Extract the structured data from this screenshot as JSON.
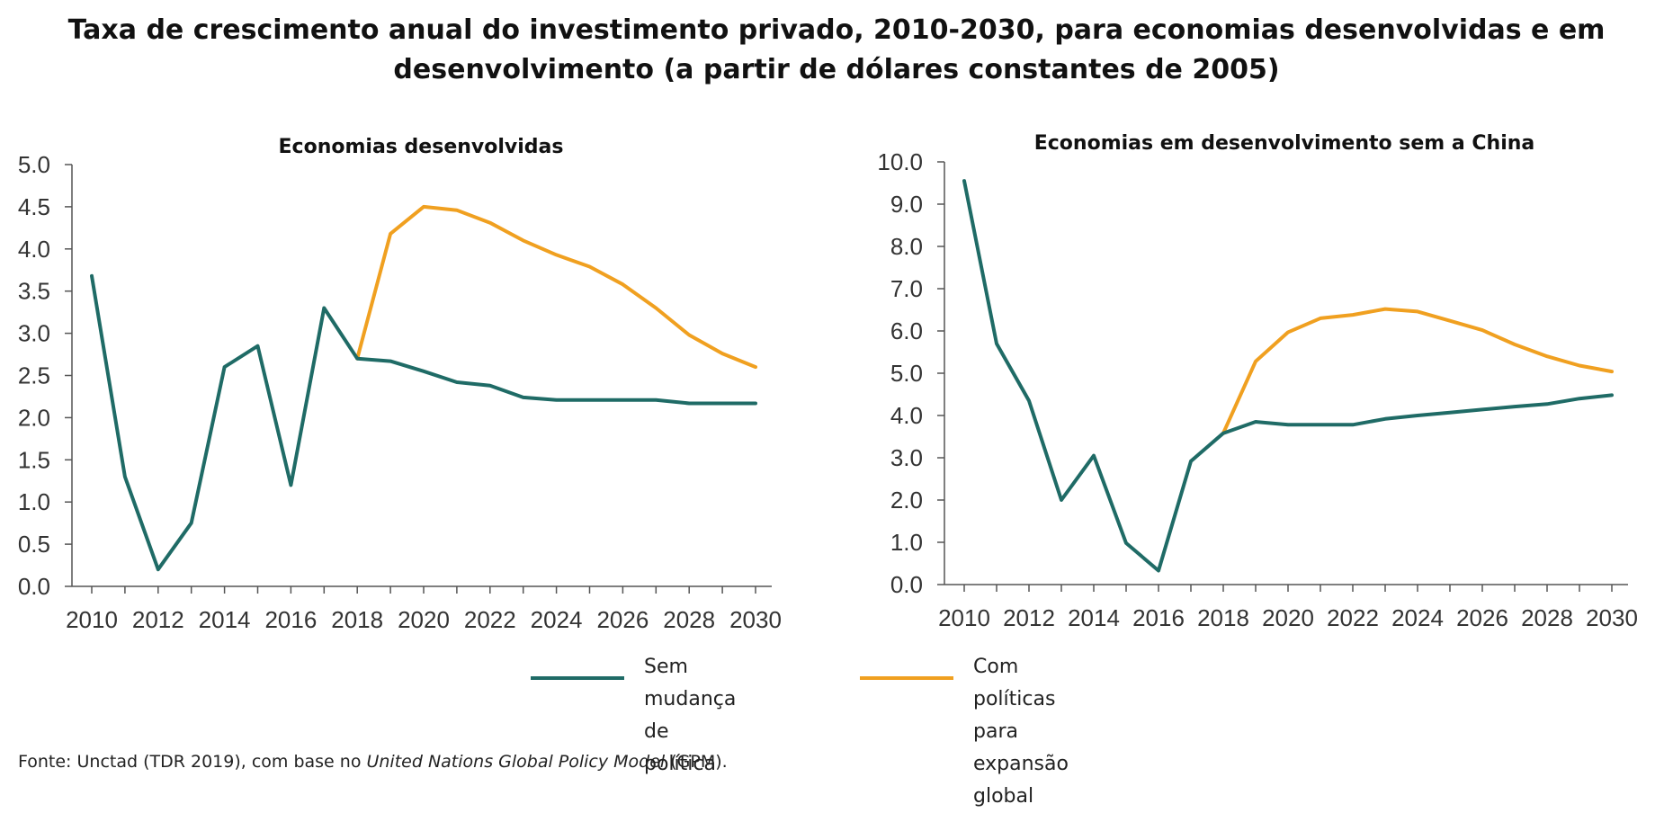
{
  "title_line1": "Taxa de crescimento anual do investimento privado, 2010-2030, para economias desenvolvidas e em",
  "title_line2": "desenvolvimento (a partir de dólares constantes de 2005)",
  "legend": [
    {
      "label_line1": "Sem mudança de",
      "label_line2": "política",
      "color": "#1f6b66"
    },
    {
      "label_line1": "Com políticas para",
      "label_line2": "expansão global",
      "color": "#f0a020"
    }
  ],
  "source": {
    "prefix": "Fonte: Unctad (TDR 2019), com base no ",
    "italic": "United Nations Global Policy Model",
    "suffix": " (GPM)."
  },
  "chart_data": [
    {
      "type": "line",
      "title": "Economias desenvolvidas",
      "x": [
        2010,
        2011,
        2012,
        2013,
        2014,
        2015,
        2016,
        2017,
        2018,
        2019,
        2020,
        2021,
        2022,
        2023,
        2024,
        2025,
        2026,
        2027,
        2028,
        2029,
        2030
      ],
      "xticks": [
        "2010",
        "2012",
        "2014",
        "2016",
        "2018",
        "2020",
        "2022",
        "2024",
        "2026",
        "2028",
        "2030"
      ],
      "yticks": [
        "0.0",
        "0.5",
        "1.0",
        "1.5",
        "2.0",
        "2.5",
        "3.0",
        "3.5",
        "4.0",
        "4.5",
        "5.0"
      ],
      "ylim": [
        0,
        5
      ],
      "grid": false,
      "series": [
        {
          "name": "Sem mudança de política",
          "color": "#1f6b66",
          "x": [
            2010,
            2011,
            2012,
            2013,
            2014,
            2015,
            2016,
            2017,
            2018,
            2019,
            2020,
            2021,
            2022,
            2023,
            2024,
            2025,
            2026,
            2027,
            2028,
            2029,
            2030
          ],
          "values": [
            3.68,
            1.3,
            0.2,
            0.75,
            2.6,
            2.85,
            1.2,
            3.3,
            2.7,
            2.67,
            2.55,
            2.42,
            2.38,
            2.24,
            2.21,
            2.21,
            2.21,
            2.21,
            2.17,
            2.17,
            2.17
          ]
        },
        {
          "name": "Com políticas para expansão global",
          "color": "#f0a020",
          "x": [
            2018,
            2019,
            2020,
            2021,
            2022,
            2023,
            2024,
            2025,
            2026,
            2027,
            2028,
            2029,
            2030
          ],
          "values": [
            2.7,
            4.18,
            4.5,
            4.46,
            4.31,
            4.1,
            3.93,
            3.79,
            3.58,
            3.3,
            2.98,
            2.76,
            2.6
          ]
        }
      ]
    },
    {
      "type": "line",
      "title": "Economias em desenvolvimento sem a China",
      "x": [
        2010,
        2011,
        2012,
        2013,
        2014,
        2015,
        2016,
        2017,
        2018,
        2019,
        2020,
        2021,
        2022,
        2023,
        2024,
        2025,
        2026,
        2027,
        2028,
        2029,
        2030
      ],
      "xticks": [
        "2010",
        "2012",
        "2014",
        "2016",
        "2018",
        "2020",
        "2022",
        "2024",
        "2026",
        "2028",
        "2030"
      ],
      "yticks": [
        "0.0",
        "1.0",
        "2.0",
        "3.0",
        "4.0",
        "5.0",
        "6.0",
        "7.0",
        "8.0",
        "9.0",
        "10.0"
      ],
      "ylim": [
        0,
        10
      ],
      "grid": false,
      "series": [
        {
          "name": "Sem mudança de política",
          "color": "#1f6b66",
          "x": [
            2010,
            2011,
            2012,
            2013,
            2014,
            2015,
            2016,
            2017,
            2018,
            2019,
            2020,
            2021,
            2022,
            2023,
            2024,
            2025,
            2026,
            2027,
            2028,
            2029,
            2030
          ],
          "values": [
            9.55,
            5.7,
            4.35,
            2.0,
            3.05,
            0.98,
            0.33,
            2.92,
            3.58,
            3.85,
            3.78,
            3.78,
            3.78,
            3.92,
            4.0,
            4.07,
            4.14,
            4.21,
            4.27,
            4.4,
            4.48
          ]
        },
        {
          "name": "Com políticas para expansão global",
          "color": "#f0a020",
          "x": [
            2018,
            2019,
            2020,
            2021,
            2022,
            2023,
            2024,
            2025,
            2026,
            2027,
            2028,
            2029,
            2030
          ],
          "values": [
            3.58,
            5.28,
            5.97,
            6.3,
            6.38,
            6.52,
            6.46,
            6.24,
            6.02,
            5.68,
            5.4,
            5.18,
            5.04
          ]
        }
      ]
    }
  ]
}
